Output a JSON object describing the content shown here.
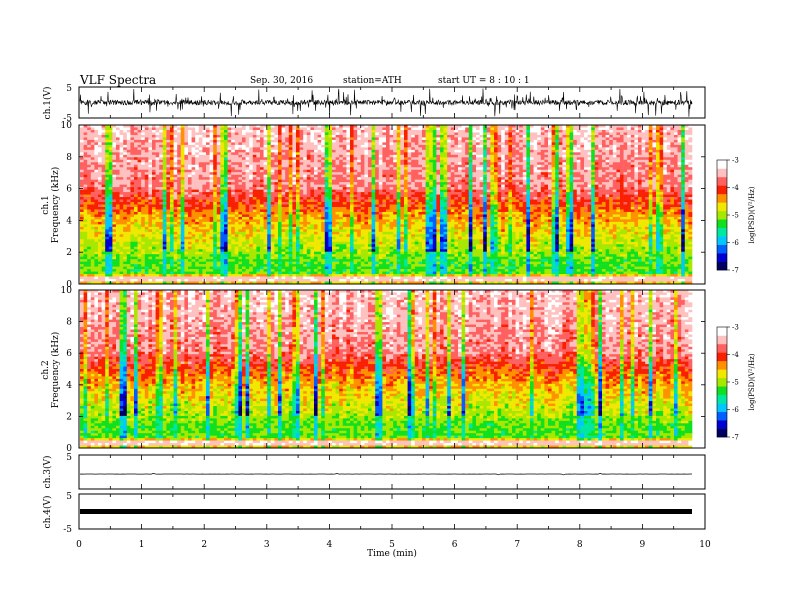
{
  "header": {
    "title": "VLF  Spectra",
    "date": "Sep. 30, 2016",
    "station": "station=ATH",
    "start": "start  UT  =    8  : 10 : 1"
  },
  "chart_data": [
    {
      "type": "line",
      "name": "ch1-waveform",
      "ylabel": "ch.1(V)",
      "ylim": [
        -5,
        5
      ],
      "yticks": [
        "5",
        "-5"
      ],
      "xlim": [
        0,
        10
      ],
      "xlabel": ""
    },
    {
      "type": "heatmap",
      "name": "ch1-spectrogram",
      "ylabel": "ch.1\nFrequency  (kHz)",
      "yunits": "kHz",
      "ylim": [
        0,
        10
      ],
      "yticks": [
        "0",
        "2",
        "4",
        "6",
        "8",
        "10"
      ],
      "xlim": [
        0,
        10
      ],
      "colorbar": {
        "label": "log(PSD)(V²/Hz)",
        "range": [
          -7,
          -3
        ],
        "ticks": [
          "-3",
          "-4",
          "-5",
          "-6",
          "-7"
        ]
      }
    },
    {
      "type": "heatmap",
      "name": "ch2-spectrogram",
      "ylabel": "ch.2\nFrequency  (kHz)",
      "yunits": "kHz",
      "ylim": [
        0,
        10
      ],
      "yticks": [
        "0",
        "2",
        "4",
        "6",
        "8",
        "10"
      ],
      "xlim": [
        0,
        10
      ],
      "colorbar": {
        "label": "log(PSD)(V²/Hz)",
        "range": [
          -7,
          -3
        ],
        "ticks": [
          "-3",
          "-4",
          "-5",
          "-6",
          "-7"
        ]
      }
    },
    {
      "type": "line",
      "name": "ch3-waveform",
      "ylabel": "ch.3(V)",
      "ylim": [
        -5,
        5
      ],
      "yticks": [
        "5"
      ],
      "xlim": [
        0,
        10
      ]
    },
    {
      "type": "line",
      "name": "ch4-waveform",
      "ylabel": "ch.4(V)",
      "ylim": [
        -5,
        5
      ],
      "yticks": [
        "5",
        "-5"
      ],
      "xlim": [
        0,
        10
      ],
      "xlabel": "Time  (min)",
      "xticks": [
        "0",
        "1",
        "2",
        "3",
        "4",
        "5",
        "6",
        "7",
        "8",
        "9",
        "10"
      ]
    }
  ],
  "colors": {
    "spectrum": [
      "#000060",
      "#0000d0",
      "#0060ff",
      "#00c8ff",
      "#00e8a0",
      "#10e020",
      "#a8e800",
      "#f0e800",
      "#ff9000",
      "#f82000",
      "#ff6060",
      "#ffc0c0",
      "#ffffff"
    ]
  }
}
